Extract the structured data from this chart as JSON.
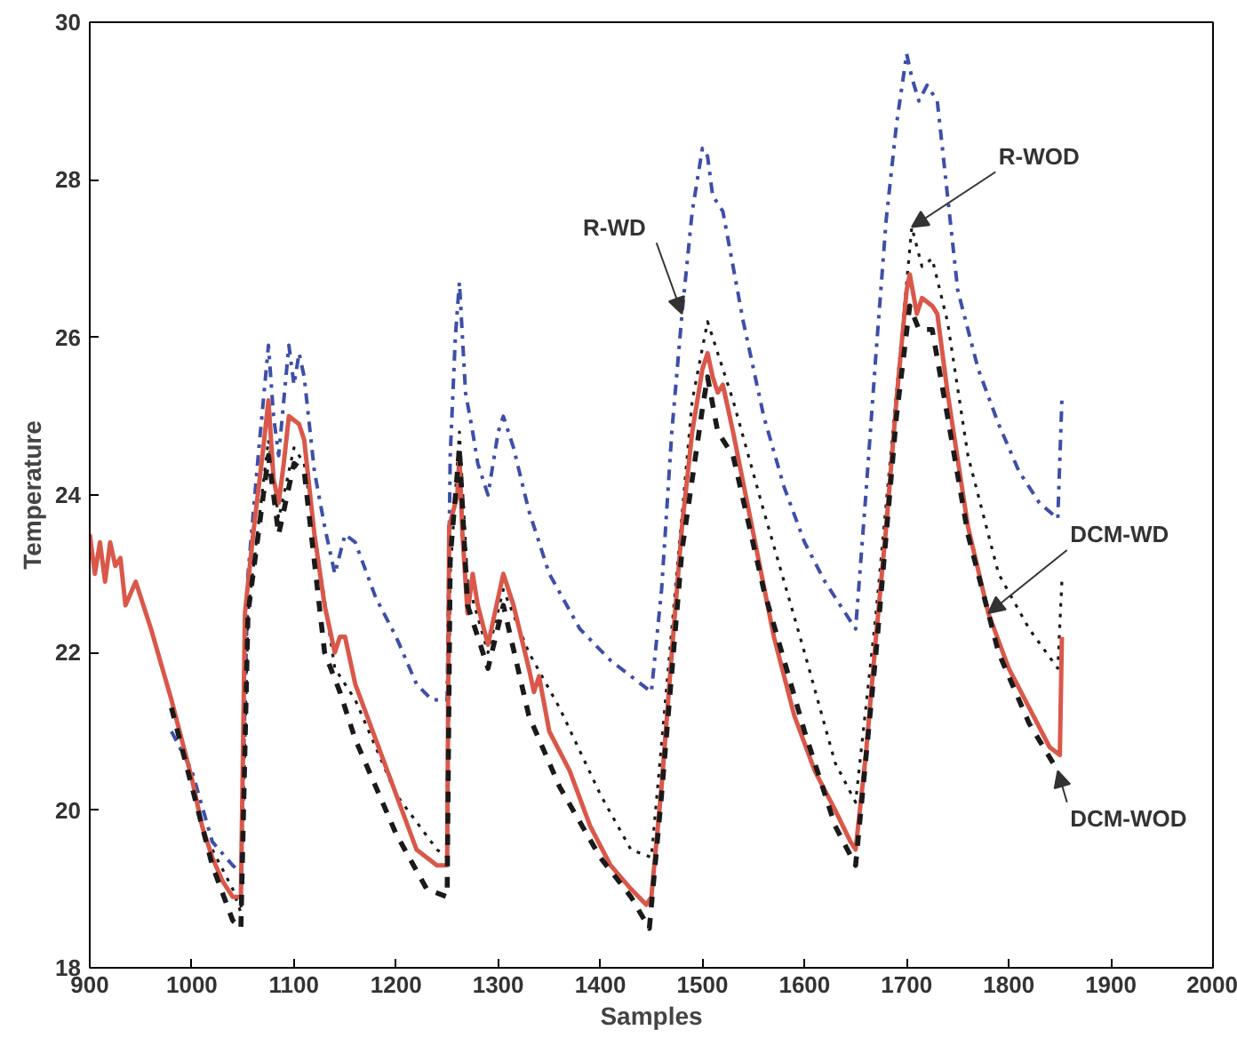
{
  "chart_data": {
    "type": "line",
    "xlabel": "Samples",
    "ylabel": "Temperature",
    "xlim": [
      900,
      2000
    ],
    "ylim": [
      18,
      30
    ],
    "xticks": [
      900,
      1000,
      1100,
      1200,
      1300,
      1400,
      1500,
      1600,
      1700,
      1800,
      1900,
      2000
    ],
    "yticks": [
      18,
      20,
      22,
      24,
      26,
      28,
      30
    ],
    "grid": false,
    "legend": false,
    "series": [
      {
        "name": "R-WD",
        "color": "#3d4fa8",
        "line_style": "dashdot",
        "x": [
          980,
          1000,
          1020,
          1040,
          1048,
          1055,
          1065,
          1075,
          1080,
          1085,
          1095,
          1100,
          1105,
          1110,
          1120,
          1130,
          1140,
          1150,
          1160,
          1180,
          1200,
          1220,
          1235,
          1250,
          1253,
          1258,
          1262,
          1268,
          1275,
          1280,
          1290,
          1300,
          1305,
          1315,
          1330,
          1350,
          1380,
          1410,
          1440,
          1450,
          1460,
          1470,
          1480,
          1490,
          1500,
          1505,
          1510,
          1520,
          1540,
          1560,
          1580,
          1600,
          1620,
          1640,
          1650,
          1660,
          1670,
          1680,
          1690,
          1700,
          1705,
          1712,
          1720,
          1730,
          1740,
          1750,
          1770,
          1790,
          1810,
          1830,
          1848,
          1852
        ],
        "values": [
          21.0,
          20.5,
          19.6,
          19.3,
          19.2,
          23.0,
          24.5,
          25.9,
          25.0,
          24.5,
          25.9,
          25.4,
          25.8,
          25.5,
          24.3,
          23.6,
          23.0,
          23.5,
          23.4,
          22.7,
          22.2,
          21.6,
          21.4,
          21.4,
          24.5,
          26.0,
          26.7,
          25.3,
          24.8,
          24.4,
          24.0,
          24.8,
          25.0,
          24.6,
          23.8,
          23.0,
          22.3,
          21.9,
          21.6,
          21.5,
          22.8,
          24.8,
          26.3,
          27.6,
          28.4,
          28.3,
          27.8,
          27.6,
          26.2,
          25.0,
          24.1,
          23.4,
          22.9,
          22.5,
          22.3,
          24.0,
          25.8,
          27.5,
          28.7,
          29.6,
          29.3,
          29.0,
          29.2,
          29.0,
          27.8,
          26.6,
          25.6,
          24.9,
          24.3,
          23.9,
          23.7,
          25.2
        ]
      },
      {
        "name": "R-WOD",
        "color": "#1a1a1a",
        "line_style": "dotted",
        "x": [
          1020,
          1040,
          1048,
          1055,
          1075,
          1085,
          1100,
          1110,
          1140,
          1160,
          1200,
          1240,
          1250,
          1253,
          1262,
          1270,
          1290,
          1305,
          1330,
          1360,
          1400,
          1430,
          1450,
          1470,
          1490,
          1505,
          1515,
          1530,
          1560,
          1600,
          1630,
          1650,
          1670,
          1690,
          1705,
          1715,
          1725,
          1740,
          1760,
          1790,
          1820,
          1848,
          1852
        ],
        "values": [
          19.5,
          19.0,
          18.7,
          22.5,
          24.7,
          23.7,
          24.6,
          24.4,
          21.8,
          21.4,
          20.2,
          19.5,
          19.4,
          23.0,
          24.8,
          22.9,
          22.0,
          22.8,
          22.0,
          21.3,
          20.2,
          19.5,
          19.4,
          22.3,
          25.2,
          26.2,
          25.8,
          25.2,
          23.8,
          22.0,
          20.6,
          20.1,
          22.5,
          25.3,
          27.4,
          26.9,
          27.0,
          26.2,
          24.5,
          23.0,
          22.3,
          21.8,
          22.9
        ]
      },
      {
        "name": "DCM-WD",
        "color": "#d9584a",
        "line_style": "solid",
        "x": [
          900,
          905,
          910,
          915,
          920,
          925,
          930,
          935,
          945,
          960,
          980,
          1000,
          1010,
          1020,
          1030,
          1040,
          1048,
          1052,
          1060,
          1070,
          1075,
          1080,
          1085,
          1090,
          1095,
          1105,
          1110,
          1120,
          1130,
          1140,
          1145,
          1150,
          1160,
          1180,
          1200,
          1220,
          1240,
          1250,
          1252,
          1260,
          1262,
          1265,
          1270,
          1275,
          1280,
          1290,
          1300,
          1305,
          1315,
          1330,
          1335,
          1340,
          1350,
          1370,
          1390,
          1410,
          1430,
          1445,
          1450,
          1460,
          1470,
          1480,
          1490,
          1500,
          1505,
          1510,
          1515,
          1520,
          1530,
          1550,
          1570,
          1590,
          1610,
          1630,
          1645,
          1650,
          1660,
          1670,
          1680,
          1690,
          1700,
          1703,
          1710,
          1715,
          1725,
          1730,
          1740,
          1760,
          1780,
          1800,
          1820,
          1840,
          1850,
          1852
        ],
        "values": [
          23.5,
          23.0,
          23.4,
          22.9,
          23.4,
          23.1,
          23.2,
          22.6,
          22.9,
          22.3,
          21.4,
          20.4,
          19.8,
          19.4,
          19.1,
          18.9,
          18.9,
          22.5,
          23.5,
          24.6,
          25.2,
          24.2,
          23.9,
          24.4,
          25.0,
          24.9,
          24.7,
          23.5,
          22.6,
          22.0,
          22.2,
          22.2,
          21.6,
          20.9,
          20.2,
          19.5,
          19.3,
          19.3,
          23.6,
          24.0,
          24.5,
          23.5,
          22.5,
          23.0,
          22.6,
          22.1,
          22.7,
          23.0,
          22.6,
          21.8,
          21.5,
          21.7,
          21.0,
          20.5,
          19.8,
          19.3,
          19.0,
          18.8,
          18.9,
          20.3,
          22.0,
          23.6,
          24.8,
          25.6,
          25.8,
          25.5,
          25.3,
          25.4,
          24.8,
          23.5,
          22.2,
          21.2,
          20.5,
          20.0,
          19.6,
          19.5,
          20.7,
          22.2,
          23.6,
          25.2,
          26.6,
          26.8,
          26.3,
          26.5,
          26.4,
          26.3,
          25.3,
          23.6,
          22.5,
          21.8,
          21.3,
          20.8,
          20.7,
          22.2
        ]
      },
      {
        "name": "DCM-WOD",
        "color": "#1a1a1a",
        "line_style": "dashed",
        "x": [
          980,
          1000,
          1020,
          1040,
          1048,
          1055,
          1075,
          1085,
          1100,
          1110,
          1130,
          1145,
          1160,
          1200,
          1230,
          1250,
          1253,
          1262,
          1270,
          1290,
          1305,
          1330,
          1360,
          1400,
          1430,
          1448,
          1460,
          1480,
          1500,
          1505,
          1515,
          1530,
          1560,
          1600,
          1630,
          1650,
          1670,
          1690,
          1703,
          1712,
          1725,
          1740,
          1760,
          1790,
          1820,
          1848
        ],
        "values": [
          21.3,
          20.3,
          19.3,
          18.6,
          18.5,
          22.5,
          24.5,
          23.5,
          24.4,
          24.3,
          22.0,
          21.5,
          20.9,
          19.7,
          19.0,
          18.9,
          23.2,
          24.6,
          22.6,
          21.8,
          22.6,
          21.2,
          20.3,
          19.4,
          18.9,
          18.5,
          20.2,
          23.3,
          25.1,
          25.5,
          24.8,
          24.5,
          22.8,
          21.0,
          19.8,
          19.3,
          22.0,
          25.0,
          26.4,
          26.1,
          26.1,
          25.0,
          23.5,
          22.0,
          21.1,
          20.5
        ]
      }
    ]
  }
}
